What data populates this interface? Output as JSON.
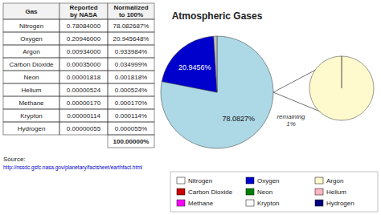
{
  "chart_data": [
    {
      "type": "table",
      "xlabel": "Gas",
      "categories": [
        "Nitrogen",
        "Oxygen",
        "Argon",
        "Carbon Dioxide",
        "Neon",
        "Helium",
        "Methane",
        "Krypton",
        "Hydrogen"
      ],
      "series": [
        {
          "name": "Reported\nby NASA",
          "values": [
            0.78084,
            0.20946,
            0.00934,
            0.00035,
            1.818e-05,
            5.24e-06,
            1.7e-06,
            1.14e-06,
            5.5e-07
          ],
          "value_labels": [
            "0.78084000",
            "0.20946000",
            "0.00934000",
            "0.00035000",
            "0.00001818",
            "0.00000524",
            "0.00000170",
            "0.00000114",
            "0.00000055"
          ]
        },
        {
          "name": "Normalized\nto 100%",
          "values": [
            78.082687,
            20.945648,
            0.933984,
            0.034999,
            0.001818,
            0.000524,
            0.00017,
            0.000114,
            5.5e-05
          ],
          "value_labels": [
            "78.082687%",
            "20.945648%",
            "0.933984%",
            "0.034999%",
            "0.001818%",
            "0.000524%",
            "0.000170%",
            "0.000114%",
            "0.000055%"
          ],
          "total": 100,
          "total_label": "100.00000%"
        }
      ],
      "annotations": [
        "Source:",
        "http://nssdc.gsfc.nasa.gov/planetary/factsheet/earthfact.html"
      ]
    },
    {
      "type": "pie",
      "title": "Atmospheric Gases",
      "values": [
        78.0827,
        20.9456,
        0.9717
      ],
      "value_labels": [
        "78.0827%",
        "20.9456%",
        null
      ],
      "colors": [
        "#add8e6",
        "#0000cc",
        "#c0c0c0"
      ]
    },
    {
      "type": "pie",
      "values": [
        0.034999,
        0.001818,
        0.000524,
        0.00017,
        0.000114,
        5.5e-05,
        99.96132
      ],
      "colors": [
        "#cc0000",
        "#008000",
        "#ffb6c1",
        "#ff00ff",
        "#fffff0",
        "#000080",
        "#fffacd"
      ],
      "annotations": [
        "remaining\n1%"
      ]
    },
    {
      "type": "legend",
      "series": [
        {
          "name": "Nitrogen",
          "color": "#ffffff"
        },
        {
          "name": "Oxygen",
          "color": "#0000cc"
        },
        {
          "name": "Argon",
          "color": "#fffacd"
        },
        {
          "name": "Carbon Dioxide",
          "color": "#cc0000"
        },
        {
          "name": "Neon",
          "color": "#008000"
        },
        {
          "name": "Helium",
          "color": "#ffb6c1"
        },
        {
          "name": "Methane",
          "color": "#ff00ff"
        },
        {
          "name": "Krypton",
          "color": "#ffffff"
        },
        {
          "name": "Hydrogen",
          "color": "#000080"
        }
      ]
    }
  ]
}
